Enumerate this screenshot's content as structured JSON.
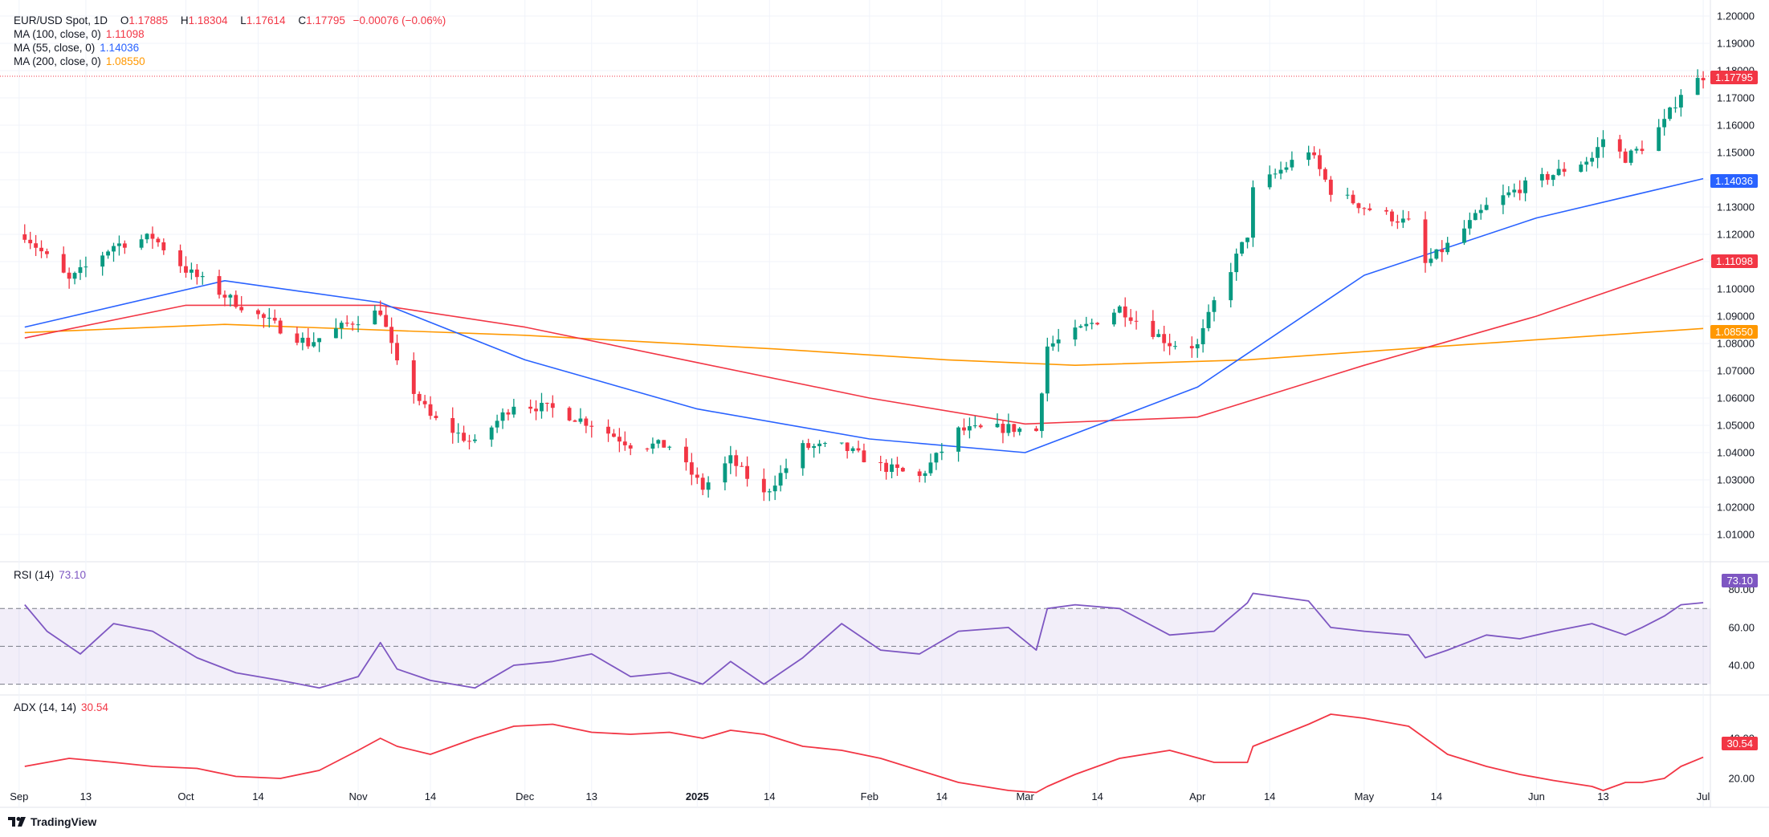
{
  "header": {
    "symbol": "EUR/USD Spot, 1D",
    "open_label": "O",
    "open": "1.17885",
    "high_label": "H",
    "high": "1.18304",
    "low_label": "L",
    "low": "1.17614",
    "close_label": "C",
    "close": "1.17795",
    "change": "−0.00076 (−0.06%)"
  },
  "indicators": {
    "ma100": {
      "label": "MA (100, close, 0)",
      "value": "1.11098",
      "color": "#f23645"
    },
    "ma55": {
      "label": "MA (55, close, 0)",
      "value": "1.14036",
      "color": "#2962ff"
    },
    "ma200": {
      "label": "MA (200, close, 0)",
      "value": "1.08550",
      "color": "#ff9800"
    },
    "rsi": {
      "label": "RSI (14)",
      "value": "73.10",
      "color": "#7e57c2"
    },
    "adx": {
      "label": "ADX (14, 14)",
      "value": "30.54",
      "color": "#f23645"
    }
  },
  "colors": {
    "up": "#089981",
    "down": "#f23645",
    "grid": "#f0f3fa",
    "axis_text": "#131722"
  },
  "footer": {
    "brand": "TradingView",
    "icon": "tradingview-logo-icon"
  },
  "chart_data": [
    {
      "type": "candlestick",
      "title": "EUR/USD Spot, 1D",
      "ylim": [
        1.0,
        1.2
      ],
      "y_ticks": [
        "1.20000",
        "1.19000",
        "1.18000",
        "1.17000",
        "1.16000",
        "1.15000",
        "1.14000",
        "1.13000",
        "1.12000",
        "1.11000",
        "1.10000",
        "1.09000",
        "1.08000",
        "1.07000",
        "1.06000",
        "1.05000",
        "1.04000",
        "1.03000",
        "1.02000",
        "1.01000"
      ],
      "x_ticks": [
        "Sep",
        "13",
        "Oct",
        "14",
        "Nov",
        "14",
        "Dec",
        "13",
        "2025",
        "14",
        "Feb",
        "14",
        "Mar",
        "14",
        "Apr",
        "14",
        "May",
        "14",
        "Jun",
        "13",
        "Jul"
      ],
      "close_path": [
        [
          "2024-09-02",
          1.12
        ],
        [
          "2024-09-10",
          1.103
        ],
        [
          "2024-09-18",
          1.116
        ],
        [
          "2024-09-25",
          1.119
        ],
        [
          "2024-10-01",
          1.107
        ],
        [
          "2024-10-08",
          1.0975
        ],
        [
          "2024-10-15",
          1.089
        ],
        [
          "2024-10-23",
          1.08
        ],
        [
          "2024-10-31",
          1.088
        ],
        [
          "2024-11-05",
          1.092
        ],
        [
          "2024-11-08",
          1.072
        ],
        [
          "2024-11-14",
          1.053
        ],
        [
          "2024-11-22",
          1.043
        ],
        [
          "2024-11-29",
          1.058
        ],
        [
          "2024-12-06",
          1.056
        ],
        [
          "2024-12-13",
          1.0505
        ],
        [
          "2024-12-20",
          1.043
        ],
        [
          "2024-12-27",
          1.0425
        ],
        [
          "2025-01-02",
          1.027
        ],
        [
          "2025-01-07",
          1.0375
        ],
        [
          "2025-01-13",
          1.0245
        ],
        [
          "2025-01-20",
          1.042
        ],
        [
          "2025-01-27",
          1.042
        ],
        [
          "2025-02-03",
          1.035
        ],
        [
          "2025-02-10",
          1.031
        ],
        [
          "2025-02-17",
          1.048
        ],
        [
          "2025-02-26",
          1.049
        ],
        [
          "2025-03-03",
          1.048
        ],
        [
          "2025-03-05",
          1.079
        ],
        [
          "2025-03-10",
          1.084
        ],
        [
          "2025-03-18",
          1.093
        ],
        [
          "2025-03-27",
          1.08
        ],
        [
          "2025-04-01",
          1.079
        ],
        [
          "2025-04-04",
          1.095
        ],
        [
          "2025-04-10",
          1.12
        ],
        [
          "2025-04-11",
          1.136
        ],
        [
          "2025-04-21",
          1.151
        ],
        [
          "2025-04-25",
          1.136
        ],
        [
          "2025-05-01",
          1.13
        ],
        [
          "2025-05-09",
          1.124
        ],
        [
          "2025-05-12",
          1.109
        ],
        [
          "2025-05-16",
          1.116
        ],
        [
          "2025-05-23",
          1.13
        ],
        [
          "2025-05-29",
          1.137
        ],
        [
          "2025-06-04",
          1.142
        ],
        [
          "2025-06-11",
          1.148
        ],
        [
          "2025-06-13",
          1.155
        ],
        [
          "2025-06-17",
          1.148
        ],
        [
          "2025-06-20",
          1.152
        ],
        [
          "2025-06-24",
          1.161
        ],
        [
          "2025-06-27",
          1.172
        ],
        [
          "2025-07-01",
          1.178
        ]
      ],
      "last_close": 1.17795,
      "ma100": [
        [
          "2024-09-02",
          1.082
        ],
        [
          "2024-10-01",
          1.094
        ],
        [
          "2024-11-05",
          1.094
        ],
        [
          "2024-12-01",
          1.086
        ],
        [
          "2025-01-01",
          1.073
        ],
        [
          "2025-02-01",
          1.06
        ],
        [
          "2025-03-01",
          1.0505
        ],
        [
          "2025-04-01",
          1.053
        ],
        [
          "2025-05-01",
          1.072
        ],
        [
          "2025-06-01",
          1.09
        ],
        [
          "2025-07-01",
          1.111
        ]
      ],
      "ma55": [
        [
          "2024-09-02",
          1.086
        ],
        [
          "2024-10-08",
          1.103
        ],
        [
          "2024-11-05",
          1.095
        ],
        [
          "2024-12-01",
          1.074
        ],
        [
          "2025-01-01",
          1.056
        ],
        [
          "2025-02-01",
          1.045
        ],
        [
          "2025-03-01",
          1.04
        ],
        [
          "2025-04-01",
          1.064
        ],
        [
          "2025-05-01",
          1.105
        ],
        [
          "2025-06-01",
          1.126
        ],
        [
          "2025-07-01",
          1.1404
        ]
      ],
      "ma200": [
        [
          "2024-09-02",
          1.084
        ],
        [
          "2024-10-08",
          1.087
        ],
        [
          "2024-12-01",
          1.083
        ],
        [
          "2025-01-15",
          1.078
        ],
        [
          "2025-02-15",
          1.074
        ],
        [
          "2025-03-10",
          1.072
        ],
        [
          "2025-04-10",
          1.074
        ],
        [
          "2025-05-15",
          1.079
        ],
        [
          "2025-07-01",
          1.0855
        ]
      ],
      "series": [
        {
          "name": "MA (100, close, 0)",
          "value": 1.11098
        },
        {
          "name": "MA (55, close, 0)",
          "value": 1.14036
        },
        {
          "name": "MA (200, close, 0)",
          "value": 1.0855
        }
      ]
    },
    {
      "type": "line",
      "title": "RSI (14)",
      "ylim": [
        26,
        82
      ],
      "y_ticks": [
        "80.00",
        "60.00",
        "40.00"
      ],
      "bands": [
        70,
        50,
        30
      ],
      "values": [
        [
          "2024-09-02",
          72
        ],
        [
          "2024-09-06",
          58
        ],
        [
          "2024-09-12",
          46
        ],
        [
          "2024-09-18",
          62
        ],
        [
          "2024-09-25",
          58
        ],
        [
          "2024-10-03",
          44
        ],
        [
          "2024-10-10",
          36
        ],
        [
          "2024-10-18",
          32
        ],
        [
          "2024-10-25",
          28
        ],
        [
          "2024-11-01",
          34
        ],
        [
          "2024-11-05",
          52
        ],
        [
          "2024-11-08",
          38
        ],
        [
          "2024-11-14",
          32
        ],
        [
          "2024-11-22",
          28
        ],
        [
          "2024-11-29",
          40
        ],
        [
          "2024-12-06",
          42
        ],
        [
          "2024-12-13",
          46
        ],
        [
          "2024-12-20",
          34
        ],
        [
          "2024-12-27",
          36
        ],
        [
          "2025-01-02",
          30
        ],
        [
          "2025-01-07",
          42
        ],
        [
          "2025-01-13",
          30
        ],
        [
          "2025-01-20",
          44
        ],
        [
          "2025-01-27",
          62
        ],
        [
          "2025-02-03",
          48
        ],
        [
          "2025-02-10",
          46
        ],
        [
          "2025-02-17",
          58
        ],
        [
          "2025-02-26",
          60
        ],
        [
          "2025-03-03",
          48
        ],
        [
          "2025-03-05",
          70
        ],
        [
          "2025-03-10",
          72
        ],
        [
          "2025-03-18",
          70
        ],
        [
          "2025-03-27",
          56
        ],
        [
          "2025-04-04",
          58
        ],
        [
          "2025-04-10",
          73
        ],
        [
          "2025-04-11",
          78
        ],
        [
          "2025-04-21",
          74
        ],
        [
          "2025-04-25",
          60
        ],
        [
          "2025-05-01",
          58
        ],
        [
          "2025-05-09",
          56
        ],
        [
          "2025-05-12",
          44
        ],
        [
          "2025-05-16",
          48
        ],
        [
          "2025-05-23",
          56
        ],
        [
          "2025-05-29",
          54
        ],
        [
          "2025-06-04",
          58
        ],
        [
          "2025-06-11",
          62
        ],
        [
          "2025-06-13",
          60
        ],
        [
          "2025-06-17",
          56
        ],
        [
          "2025-06-20",
          60
        ],
        [
          "2025-06-24",
          66
        ],
        [
          "2025-06-27",
          72
        ],
        [
          "2025-07-01",
          73.1
        ]
      ]
    },
    {
      "type": "line",
      "title": "ADX (14, 14)",
      "ylim": [
        8,
        56
      ],
      "y_ticks": [
        "40.00",
        "20.00"
      ],
      "values": [
        [
          "2024-09-02",
          26
        ],
        [
          "2024-09-10",
          30
        ],
        [
          "2024-09-18",
          28
        ],
        [
          "2024-09-25",
          26
        ],
        [
          "2024-10-03",
          25
        ],
        [
          "2024-10-10",
          21
        ],
        [
          "2024-10-18",
          20
        ],
        [
          "2024-10-25",
          24
        ],
        [
          "2024-11-01",
          34
        ],
        [
          "2024-11-05",
          40
        ],
        [
          "2024-11-08",
          36
        ],
        [
          "2024-11-14",
          32
        ],
        [
          "2024-11-22",
          40
        ],
        [
          "2024-11-29",
          46
        ],
        [
          "2024-12-06",
          47
        ],
        [
          "2024-12-13",
          43
        ],
        [
          "2024-12-20",
          42
        ],
        [
          "2024-12-27",
          43
        ],
        [
          "2025-01-02",
          40
        ],
        [
          "2025-01-07",
          44
        ],
        [
          "2025-01-13",
          42
        ],
        [
          "2025-01-20",
          36
        ],
        [
          "2025-01-27",
          34
        ],
        [
          "2025-02-03",
          30
        ],
        [
          "2025-02-10",
          24
        ],
        [
          "2025-02-17",
          18
        ],
        [
          "2025-02-26",
          14
        ],
        [
          "2025-03-03",
          13
        ],
        [
          "2025-03-05",
          16
        ],
        [
          "2025-03-10",
          22
        ],
        [
          "2025-03-18",
          30
        ],
        [
          "2025-03-27",
          34
        ],
        [
          "2025-04-04",
          28
        ],
        [
          "2025-04-10",
          28
        ],
        [
          "2025-04-11",
          36
        ],
        [
          "2025-04-21",
          47
        ],
        [
          "2025-04-25",
          52
        ],
        [
          "2025-05-01",
          50
        ],
        [
          "2025-05-09",
          46
        ],
        [
          "2025-05-12",
          40
        ],
        [
          "2025-05-16",
          32
        ],
        [
          "2025-05-23",
          26
        ],
        [
          "2025-05-29",
          22
        ],
        [
          "2025-06-04",
          19
        ],
        [
          "2025-06-11",
          16
        ],
        [
          "2025-06-13",
          14
        ],
        [
          "2025-06-17",
          18
        ],
        [
          "2025-06-20",
          18
        ],
        [
          "2025-06-24",
          20
        ],
        [
          "2025-06-27",
          26
        ],
        [
          "2025-07-01",
          30.54
        ]
      ]
    }
  ]
}
